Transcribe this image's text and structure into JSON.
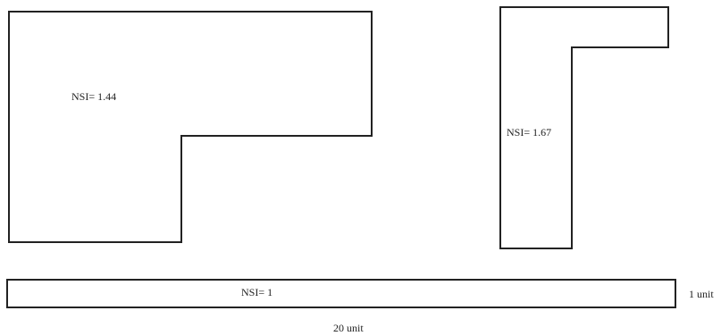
{
  "shapes": [
    {
      "name": "l-shape-large",
      "label": "NSI= 1.44"
    },
    {
      "name": "l-shape-tall",
      "label": "NSI= 1.67"
    },
    {
      "name": "bar-shape",
      "label": "NSI= 1"
    }
  ],
  "dimensions": {
    "height_label": "1 unit",
    "width_label": "20 unit"
  }
}
